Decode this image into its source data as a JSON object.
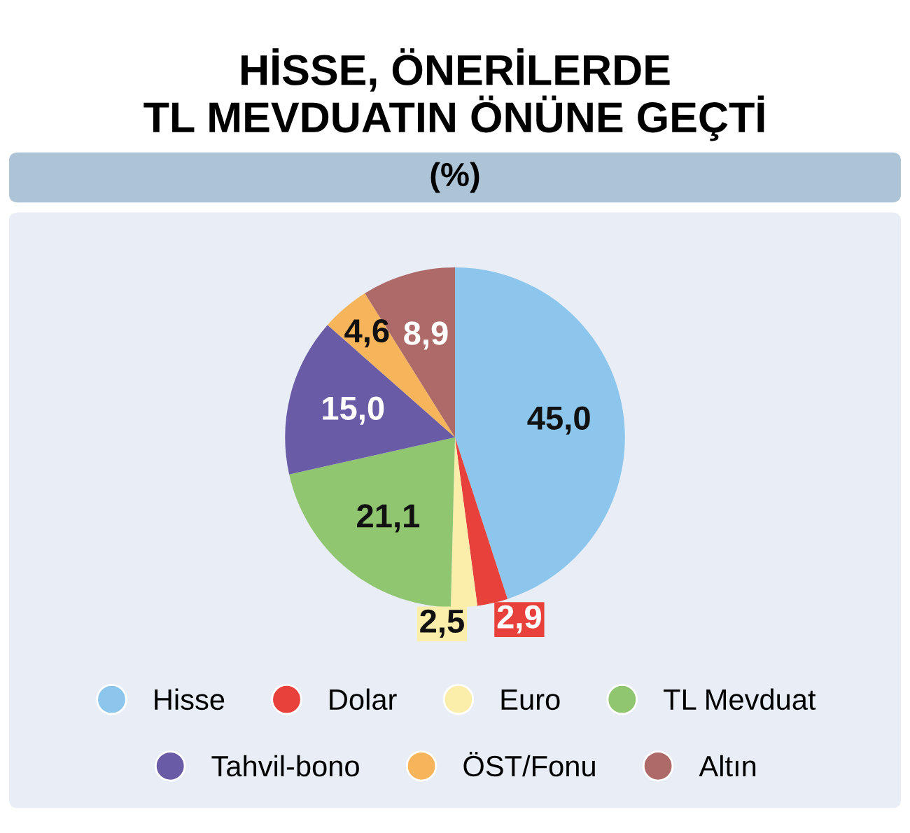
{
  "chart_data": {
    "type": "pie",
    "title": "HİSSE, ÖNERİLERDE\nTL MEVDUATIN ÖNÜNE GEÇTİ",
    "subtitle": "(%)",
    "categories": [
      "Hisse",
      "Dolar",
      "Euro",
      "TL Mevduat",
      "Tahvil-bono",
      "ÖST/Fonu",
      "Altın"
    ],
    "values": [
      45.0,
      2.9,
      2.5,
      21.1,
      15.0,
      4.6,
      8.9
    ],
    "value_labels": [
      "45,0",
      "2,9",
      "2,5",
      "21,1",
      "15,0",
      "4,6",
      "8,9"
    ],
    "colors": [
      "#8cc6ec",
      "#e8403a",
      "#fbeeaa",
      "#8fc66f",
      "#6a5ba6",
      "#f6b55a",
      "#ad6a68"
    ],
    "legend": "bottom"
  }
}
